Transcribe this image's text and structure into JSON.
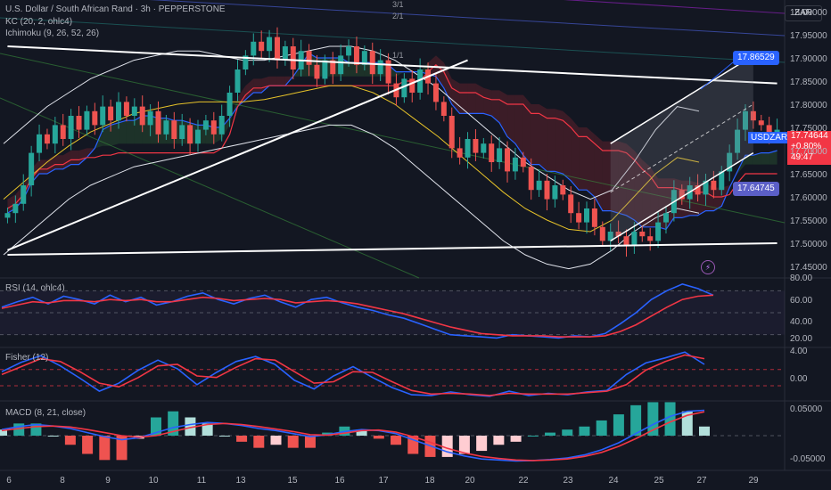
{
  "header": {
    "title": "U.S. Dollar / South African Rand · 3h · PEPPERSTONE",
    "kc_label": "KC (20, 2, ohlc4)",
    "ichimoku_label": "Ichimoku (9, 26, 52, 26)",
    "currency": "ZAR"
  },
  "price_panel": {
    "symbol_tag": "USDZAR",
    "last_price": "17.74644",
    "change": "+0.80%",
    "countdown": "49:47",
    "badge_upper": "17.86529",
    "badge_lower": "17.64745",
    "fib_labels": [
      "3/1",
      "2/1",
      "1/1"
    ]
  },
  "chart_data": [
    {
      "type": "candlestick",
      "pane": "price",
      "x_tick_labels": [
        "6",
        "8",
        "9",
        "10",
        "11",
        "13",
        "15",
        "16",
        "17",
        "18",
        "20",
        "22",
        "23",
        "24",
        "25",
        "27",
        "29"
      ],
      "y_tick_labels": [
        "18.00000",
        "17.95000",
        "17.90000",
        "17.85000",
        "17.80000",
        "17.75000",
        "17.70000",
        "17.65000",
        "17.60000",
        "17.55000",
        "17.50000",
        "17.45000"
      ],
      "ylim": [
        17.43,
        18.03
      ],
      "close": [
        17.57,
        17.59,
        17.63,
        17.7,
        17.74,
        17.72,
        17.76,
        17.73,
        17.78,
        17.75,
        17.79,
        17.76,
        17.8,
        17.77,
        17.81,
        17.78,
        17.8,
        17.76,
        17.79,
        17.74,
        17.77,
        17.73,
        17.76,
        17.72,
        17.75,
        17.77,
        17.74,
        17.78,
        17.83,
        17.88,
        17.91,
        17.94,
        17.92,
        17.95,
        17.9,
        17.93,
        17.88,
        17.92,
        17.89,
        17.86,
        17.9,
        17.87,
        17.91,
        17.93,
        17.89,
        17.92,
        17.87,
        17.9,
        17.85,
        17.82,
        17.86,
        17.83,
        17.88,
        17.85,
        17.81,
        17.78,
        17.71,
        17.69,
        17.73,
        17.7,
        17.72,
        17.68,
        17.71,
        17.66,
        17.69,
        17.67,
        17.62,
        17.64,
        17.6,
        17.63,
        17.61,
        17.57,
        17.55,
        17.58,
        17.54,
        17.51,
        17.53,
        17.52,
        17.5,
        17.53,
        17.52,
        17.51,
        17.55,
        17.57,
        17.62,
        17.6,
        17.63,
        17.61,
        17.64,
        17.62,
        17.66,
        17.7,
        17.75,
        17.79,
        17.77,
        17.76,
        17.74,
        17.75
      ],
      "kc": {
        "upper": [
          17.72,
          17.76,
          17.8,
          17.83,
          17.86,
          17.88,
          17.9,
          17.91,
          17.92,
          17.92,
          17.91,
          17.9,
          17.9,
          17.91,
          17.92,
          17.93,
          17.93,
          17.92,
          17.9,
          17.87,
          17.84,
          17.8,
          17.76,
          17.72,
          17.68,
          17.65,
          17.62,
          17.6,
          17.62,
          17.68,
          17.75,
          17.8,
          17.79
        ],
        "lower": [
          17.48,
          17.52,
          17.56,
          17.6,
          17.63,
          17.65,
          17.67,
          17.68,
          17.69,
          17.7,
          17.71,
          17.72,
          17.73,
          17.74,
          17.75,
          17.76,
          17.76,
          17.74,
          17.71,
          17.67,
          17.63,
          17.59,
          17.55,
          17.51,
          17.48,
          17.46,
          17.45,
          17.46,
          17.49,
          17.53,
          17.56,
          17.58,
          17.57
        ]
      },
      "trendlines": [
        {
          "name": "upper-trendline",
          "from": [
            0,
            17.93
          ],
          "to": [
            97,
            17.85
          ]
        },
        {
          "name": "rising-trendline",
          "from": [
            0,
            17.49
          ],
          "to": [
            58,
            17.9
          ]
        },
        {
          "name": "base-support",
          "from": [
            0,
            17.48
          ],
          "to": [
            97,
            17.505
          ]
        }
      ],
      "channel": {
        "upper": [
          [
            76,
            17.72
          ],
          [
            94,
            17.91
          ]
        ],
        "lower": [
          [
            76,
            17.51
          ],
          [
            94,
            17.7
          ]
        ]
      }
    },
    {
      "type": "line",
      "pane": "rsi",
      "title": "RSI (14, ohlc4)",
      "y_tick_labels": [
        "80.00",
        "60.00",
        "40.00",
        "20.00"
      ],
      "ylim": [
        20,
        80
      ],
      "series": [
        {
          "values": [
            55,
            60,
            64,
            58,
            65,
            62,
            58,
            66,
            60,
            64,
            57,
            60,
            65,
            68,
            62,
            58,
            63,
            66,
            60,
            55,
            62,
            64,
            59,
            55,
            52,
            48,
            45,
            40,
            35,
            30,
            29,
            28,
            27,
            30,
            29,
            28,
            27,
            29,
            28,
            31,
            40,
            50,
            62,
            70,
            76,
            72,
            66
          ]
        },
        {
          "values": [
            54,
            57,
            60,
            59,
            61,
            61,
            60,
            62,
            61,
            62,
            60,
            60,
            62,
            64,
            63,
            61,
            62,
            63,
            62,
            59,
            60,
            61,
            60,
            58,
            55,
            52,
            49,
            45,
            41,
            37,
            34,
            31,
            30,
            29,
            29,
            29,
            28,
            28,
            28,
            29,
            33,
            39,
            47,
            55,
            62,
            65,
            66
          ]
        }
      ]
    },
    {
      "type": "line",
      "pane": "fisher",
      "title": "Fisher (12)",
      "y_tick_labels": [
        "4.00",
        "0.00"
      ],
      "ylim": [
        -2.6,
        4.3
      ],
      "series": [
        {
          "values": [
            1.2,
            2.5,
            3.4,
            2.0,
            0.3,
            -1.5,
            -0.4,
            1.4,
            2.8,
            1.6,
            -0.6,
            1.1,
            2.6,
            3.3,
            2.2,
            0.0,
            -1.2,
            0.6,
            1.9,
            0.4,
            -1.0,
            -2.0,
            -2.1,
            -1.6,
            -2.0,
            -2.2,
            -1.5,
            -2.1,
            -1.8,
            -2.0,
            -1.6,
            -1.4,
            0.8,
            2.4,
            3.1,
            3.9,
            2.2
          ]
        },
        {
          "values": [
            0.8,
            1.9,
            3.0,
            2.6,
            1.2,
            -0.4,
            -0.9,
            0.4,
            2.0,
            2.2,
            0.6,
            0.4,
            1.8,
            3.0,
            2.8,
            1.2,
            -0.4,
            -0.2,
            1.2,
            1.1,
            -0.2,
            -1.4,
            -1.9,
            -1.8,
            -1.9,
            -2.1,
            -1.8,
            -1.9,
            -1.9,
            -1.9,
            -1.7,
            -1.5,
            -0.6,
            1.4,
            2.6,
            3.5,
            3.0
          ]
        }
      ]
    },
    {
      "type": "bar",
      "pane": "macd",
      "title": "MACD (8, 21, close)",
      "y_tick_labels": [
        "0.05000",
        "-0.05000"
      ],
      "ylim": [
        -0.065,
        0.065
      ],
      "macd": [
        0.012,
        0.018,
        0.022,
        0.019,
        0.014,
        0.006,
        -0.002,
        -0.008,
        -0.004,
        0.006,
        0.016,
        0.022,
        0.026,
        0.024,
        0.02,
        0.014,
        0.01,
        0.004,
        -0.002,
        0.002,
        0.008,
        0.012,
        0.01,
        0.004,
        -0.008,
        -0.02,
        -0.032,
        -0.04,
        -0.046,
        -0.048,
        -0.05,
        -0.049,
        -0.047,
        -0.044,
        -0.038,
        -0.028,
        -0.014,
        0.004,
        0.022,
        0.038,
        0.048,
        0.05
      ],
      "signal": [
        0.01,
        0.014,
        0.018,
        0.019,
        0.017,
        0.012,
        0.006,
        0.0,
        -0.003,
        0.0,
        0.008,
        0.016,
        0.022,
        0.024,
        0.022,
        0.018,
        0.013,
        0.008,
        0.002,
        0.001,
        0.005,
        0.01,
        0.011,
        0.007,
        -0.002,
        -0.013,
        -0.025,
        -0.034,
        -0.041,
        -0.045,
        -0.048,
        -0.049,
        -0.048,
        -0.046,
        -0.041,
        -0.033,
        -0.021,
        -0.006,
        0.011,
        0.027,
        0.04,
        0.047
      ]
    }
  ]
}
